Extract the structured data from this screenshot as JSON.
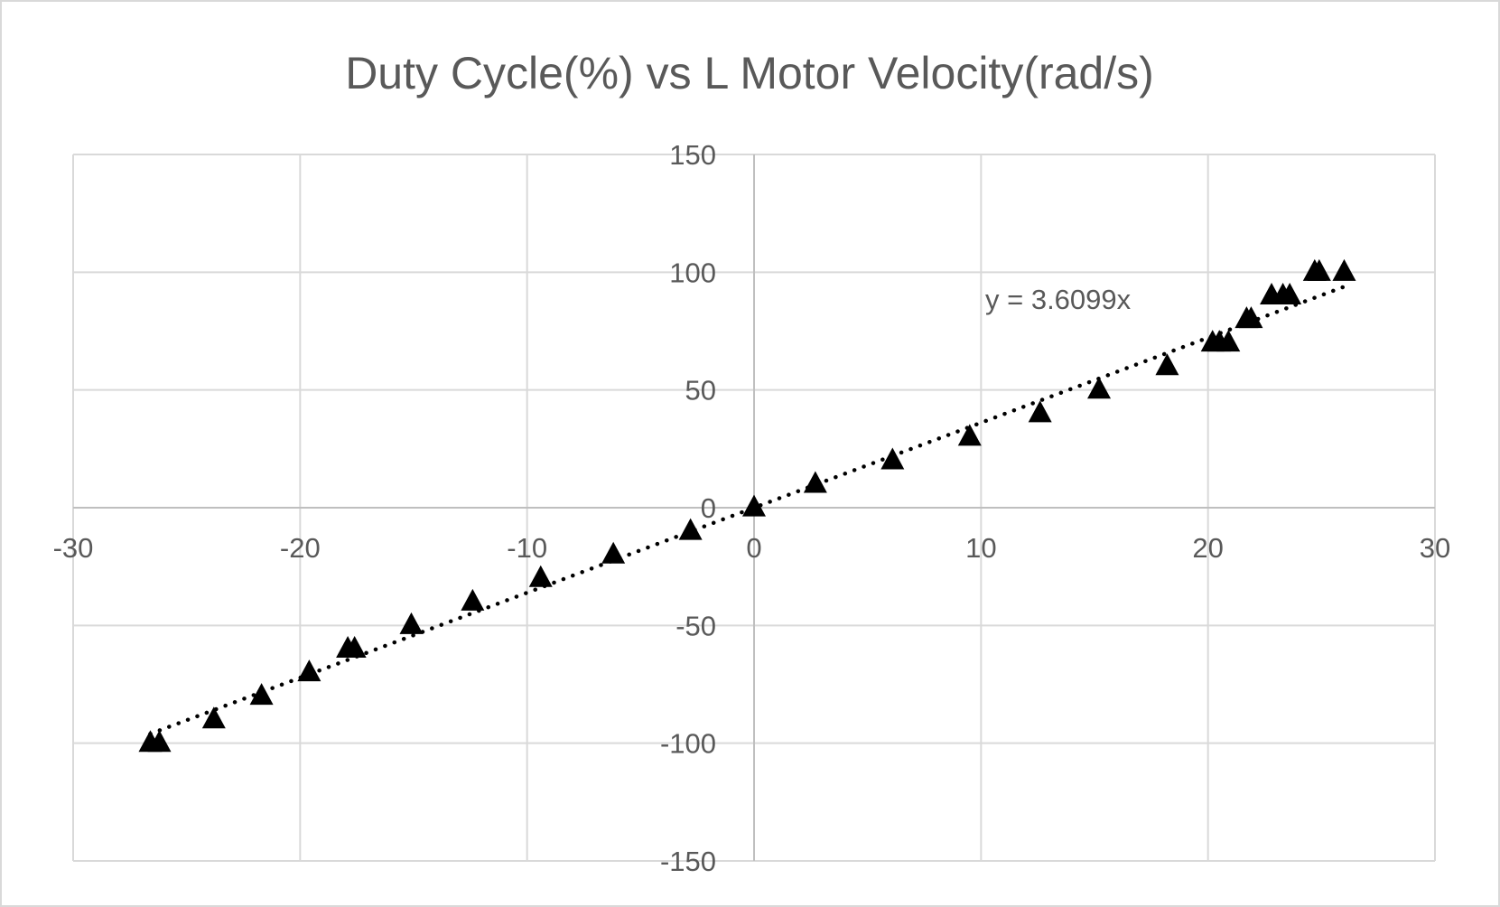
{
  "colors": {
    "background": "#ffffff",
    "grid": "#d9d9d9",
    "axis": "#bfbfbf",
    "text": "#595959",
    "marker": "#000000",
    "trendline": "#000000"
  },
  "chart_data": {
    "type": "scatter",
    "title": "Duty Cycle(%) vs L Motor Velocity(rad/s)",
    "xlabel": "",
    "ylabel": "",
    "xlim": [
      -30,
      30
    ],
    "ylim": [
      -150,
      150
    ],
    "x_ticks": [
      -30,
      -20,
      -10,
      0,
      10,
      20,
      30
    ],
    "y_ticks": [
      -150,
      -100,
      -50,
      0,
      50,
      100,
      150
    ],
    "x_tick_labels": [
      "-30",
      "-20",
      "-10",
      "0",
      "10",
      "20",
      "30"
    ],
    "y_tick_labels": [
      "-150",
      "-100",
      "-50",
      "0",
      "50",
      "100",
      "150"
    ],
    "grid": true,
    "marker": "triangle",
    "series": [
      {
        "points": [
          [
            -26.6,
            -100
          ],
          [
            -26.2,
            -100
          ],
          [
            -23.8,
            -90
          ],
          [
            -21.7,
            -80
          ],
          [
            -19.6,
            -70
          ],
          [
            -17.9,
            -60
          ],
          [
            -17.6,
            -60
          ],
          [
            -15.1,
            -50
          ],
          [
            -12.4,
            -40
          ],
          [
            -9.4,
            -30
          ],
          [
            -6.2,
            -20
          ],
          [
            -2.8,
            -10
          ],
          [
            0.0,
            0
          ],
          [
            2.7,
            10
          ],
          [
            6.1,
            20
          ],
          [
            9.5,
            30
          ],
          [
            12.6,
            40
          ],
          [
            15.2,
            50
          ],
          [
            18.2,
            60
          ],
          [
            20.2,
            70
          ],
          [
            20.5,
            70
          ],
          [
            20.9,
            70
          ],
          [
            21.7,
            80
          ],
          [
            21.9,
            80
          ],
          [
            22.8,
            90
          ],
          [
            23.3,
            90
          ],
          [
            23.6,
            90
          ],
          [
            24.7,
            100
          ],
          [
            24.9,
            100
          ],
          [
            26.0,
            100
          ]
        ]
      }
    ],
    "trendline": {
      "type": "linear",
      "slope": 3.6099,
      "x_range": [
        -26.6,
        26.0
      ],
      "equation_label": "y = 3.6099x"
    }
  }
}
